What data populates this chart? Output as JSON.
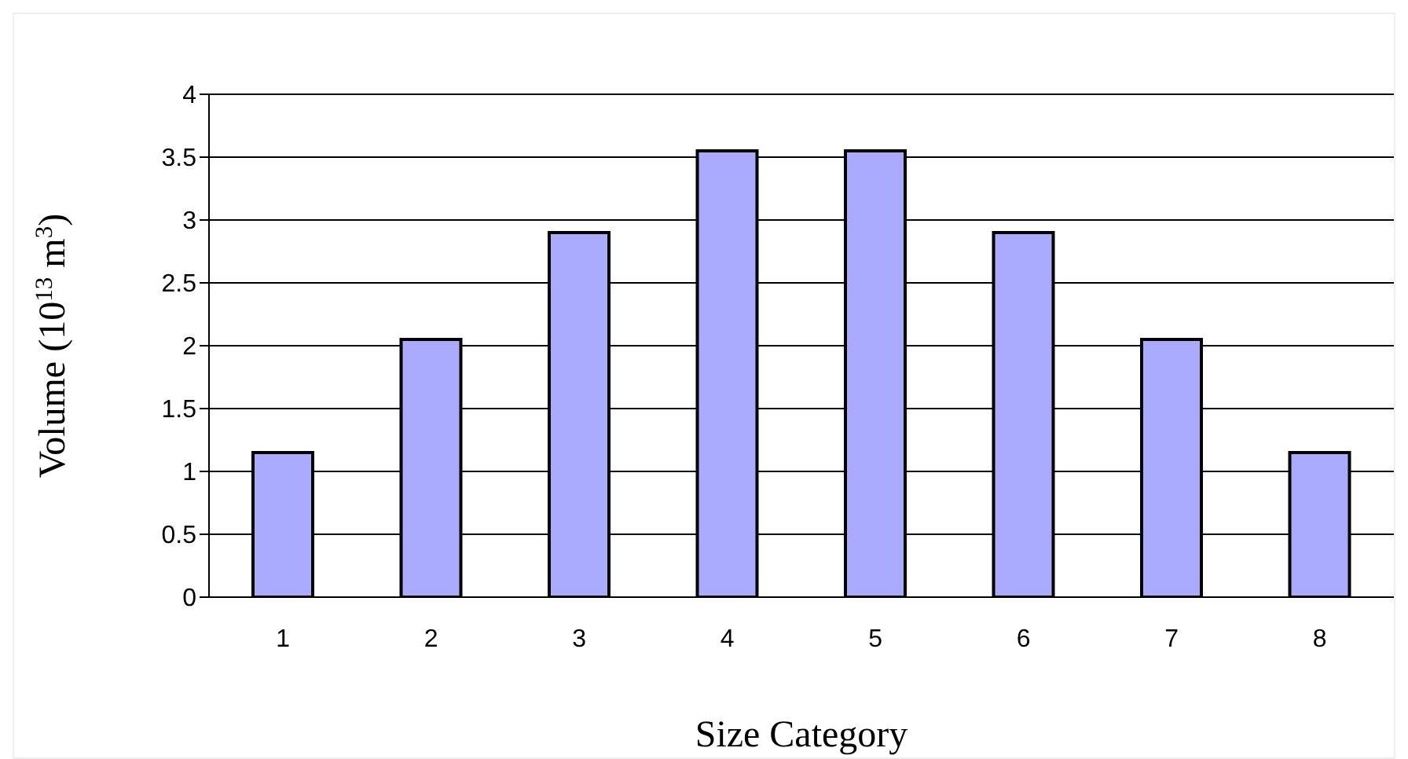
{
  "chart_data": {
    "type": "bar",
    "xlabel": "Size Category",
    "ylabel": "Volume (10$^{13}$ m$^{3}$)",
    "categories": [
      "1",
      "2",
      "3",
      "4",
      "5",
      "6",
      "7",
      "8"
    ],
    "values": [
      1.15,
      2.05,
      2.9,
      3.55,
      3.55,
      2.9,
      2.05,
      1.15
    ],
    "color": "#aaaaff",
    "ylim": [
      0,
      4
    ],
    "yticks": [
      0,
      0.5,
      1,
      1.5,
      2,
      2.5,
      3,
      3.5,
      4
    ],
    "grid": "y"
  }
}
